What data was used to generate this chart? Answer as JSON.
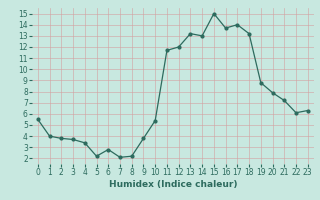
{
  "x": [
    0,
    1,
    2,
    3,
    4,
    5,
    6,
    7,
    8,
    9,
    10,
    11,
    12,
    13,
    14,
    15,
    16,
    17,
    18,
    19,
    20,
    21,
    22,
    23
  ],
  "y": [
    5.5,
    4.0,
    3.8,
    3.7,
    3.4,
    2.2,
    2.8,
    2.1,
    2.2,
    3.8,
    5.4,
    11.7,
    12.0,
    13.2,
    13.0,
    15.0,
    13.7,
    14.0,
    13.2,
    8.8,
    7.9,
    7.2,
    6.1,
    6.3
  ],
  "xlabel": "Humidex (Indice chaleur)",
  "ylabel": "",
  "xlim": [
    -0.5,
    23.5
  ],
  "ylim": [
    1.5,
    15.5
  ],
  "yticks": [
    2,
    3,
    4,
    5,
    6,
    7,
    8,
    9,
    10,
    11,
    12,
    13,
    14,
    15
  ],
  "xticks": [
    0,
    1,
    2,
    3,
    4,
    5,
    6,
    7,
    8,
    9,
    10,
    11,
    12,
    13,
    14,
    15,
    16,
    17,
    18,
    19,
    20,
    21,
    22,
    23
  ],
  "line_color": "#2d6b5e",
  "bg_color": "#c8e8e0",
  "grid_color": "#b0d8ce",
  "xlabel_fontsize": 6.5,
  "tick_fontsize": 5.5
}
